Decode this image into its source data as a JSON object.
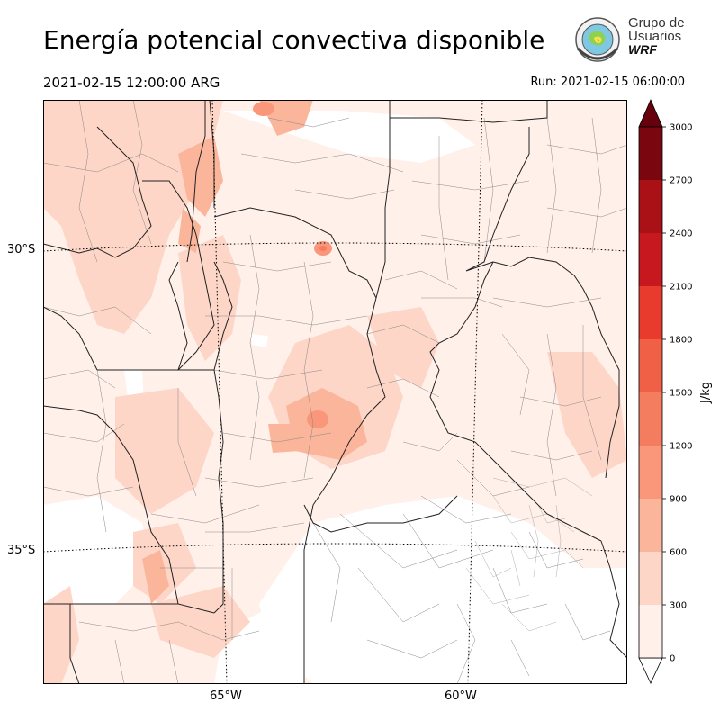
{
  "title": "Energía potencial convectiva disponible",
  "valid_time": "2021-02-15 12:00:00 ARG",
  "run_time": "Run: 2021-02-15 06:00:00",
  "logo": {
    "line1": "Grupo de",
    "line2": "Usuarios",
    "line3": "WRF"
  },
  "axes": {
    "lat_labels": [
      "30°S",
      "35°S"
    ],
    "lon_labels": [
      "65°W",
      "60°W"
    ]
  },
  "colorbar": {
    "unit_label": "J/kg",
    "levels": [
      0,
      300,
      600,
      900,
      1200,
      1500,
      1800,
      2100,
      2400,
      2700,
      3000
    ],
    "colors": [
      "#fff0ea",
      "#fdd6c7",
      "#fbb59b",
      "#fa9679",
      "#f47c5f",
      "#f06047",
      "#e83a2d",
      "#c7181f",
      "#a91117",
      "#7a0610"
    ],
    "extend": "both",
    "over_color": "#67000d",
    "under_color": "#ffffff"
  },
  "map": {
    "region": "Centro de Argentina",
    "colors": {
      "border": "#222222",
      "county": "#888888",
      "graticule": "#000000"
    }
  }
}
